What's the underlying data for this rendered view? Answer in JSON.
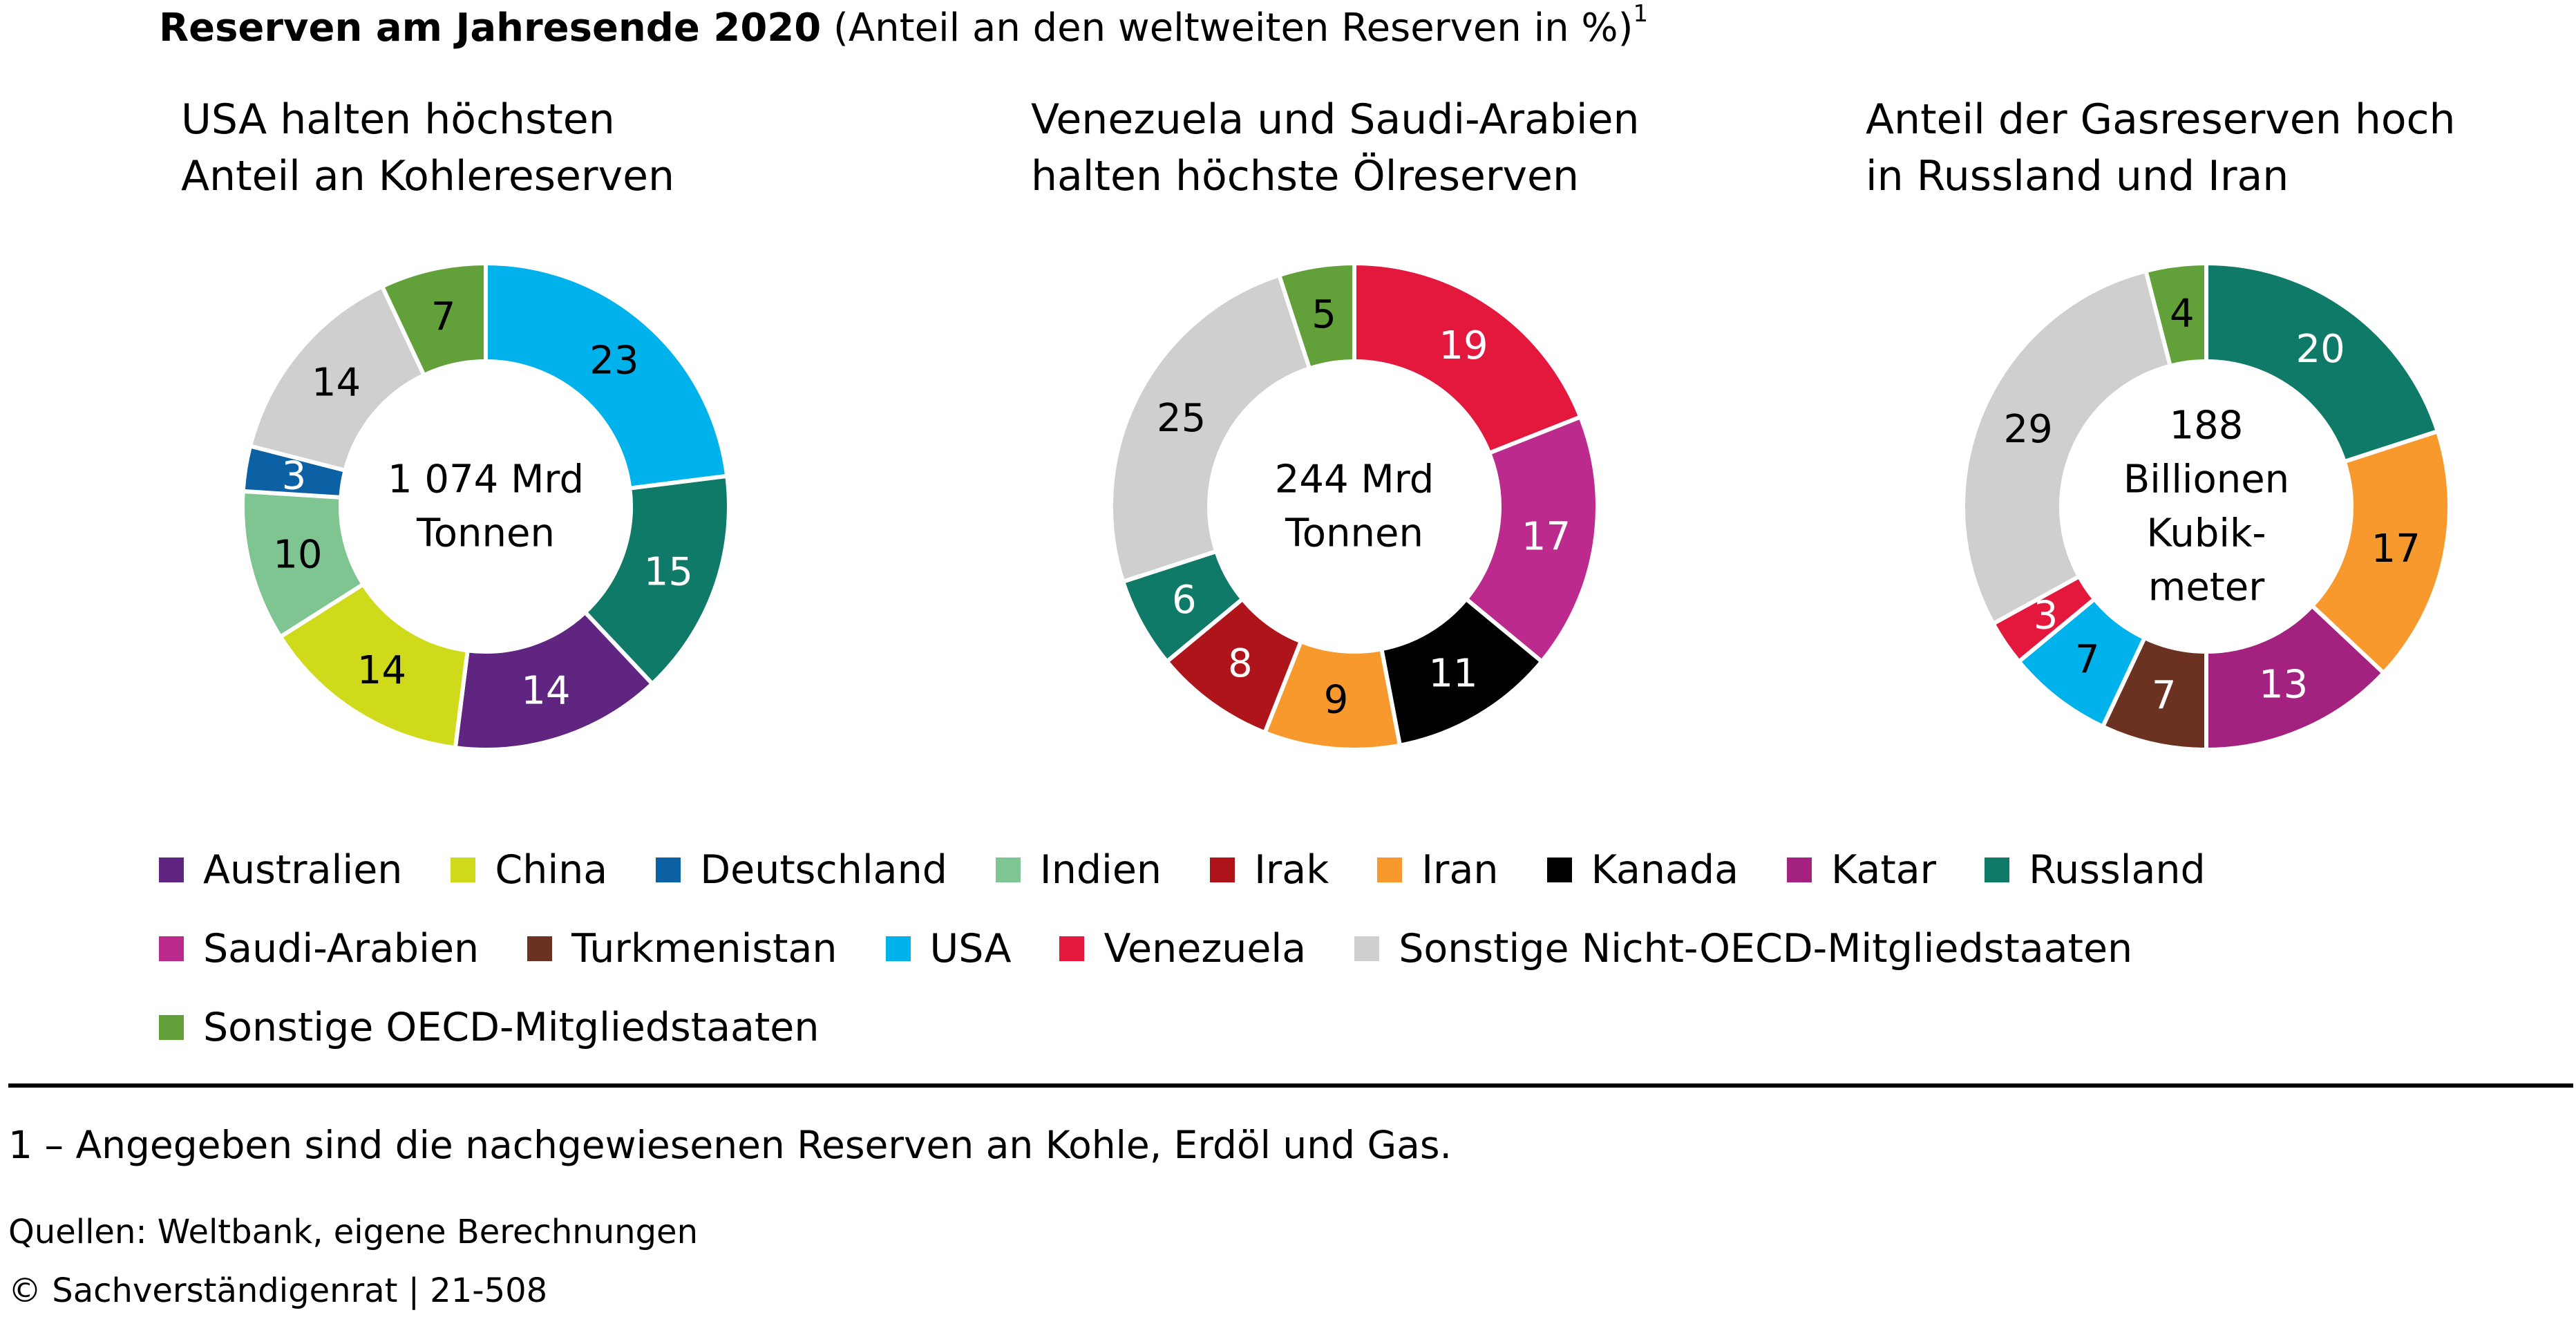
{
  "title": {
    "bold": "Reserven am Jahresende 2020",
    "rest": " (Anteil an den weltweiten Reserven in %)",
    "sup": "1"
  },
  "colors": {
    "Australien": "#5f2580",
    "China": "#cfdb1a",
    "Deutschland": "#0b61a4",
    "Indien": "#7fc591",
    "Irak": "#b0141b",
    "Iran": "#f8992e",
    "Kanada": "#000000",
    "Katar": "#a3227f",
    "Russland": "#0f7a68",
    "Saudi-Arabien": "#bd2a8d",
    "Turkmenistan": "#6b3221",
    "USA": "#00b2ec",
    "Venezuela": "#e4173d",
    "Sonstige Nicht-OECD-Mitgliedstaaten": "#cfcfcf",
    "Sonstige OECD-Mitgliedstaaten": "#62a03a"
  },
  "legend": {
    "rows": [
      [
        "Australien",
        "China",
        "Deutschland",
        "Indien",
        "Irak",
        "Iran",
        "Kanada",
        "Katar",
        "Russland"
      ],
      [
        "Saudi-Arabien",
        "Turkmenistan",
        "USA",
        "Venezuela",
        "Sonstige Nicht-OECD-Mitgliedstaaten"
      ],
      [
        "Sonstige OECD-Mitgliedstaaten"
      ]
    ]
  },
  "chart_data": [
    {
      "type": "pie",
      "title": [
        "USA halten höchsten",
        "Anteil an Kohlereserven"
      ],
      "center_label": [
        "1 074 Mrd",
        "Tonnen"
      ],
      "slices": [
        {
          "name": "USA",
          "value": 23,
          "label_color": "#000000"
        },
        {
          "name": "Russland",
          "value": 15,
          "label_color": "#ffffff"
        },
        {
          "name": "Australien",
          "value": 14,
          "label_color": "#ffffff"
        },
        {
          "name": "China",
          "value": 14,
          "label_color": "#000000"
        },
        {
          "name": "Indien",
          "value": 10,
          "label_color": "#000000"
        },
        {
          "name": "Deutschland",
          "value": 3,
          "label_color": "#ffffff"
        },
        {
          "name": "Sonstige Nicht-OECD-Mitgliedstaaten",
          "value": 14,
          "label_color": "#000000"
        },
        {
          "name": "Sonstige OECD-Mitgliedstaaten",
          "value": 7,
          "label_color": "#000000"
        }
      ]
    },
    {
      "type": "pie",
      "title": [
        "Venezuela und Saudi-Arabien",
        "halten höchste Ölreserven"
      ],
      "center_label": [
        "244 Mrd",
        "Tonnen"
      ],
      "slices": [
        {
          "name": "Venezuela",
          "value": 19,
          "label_color": "#ffffff"
        },
        {
          "name": "Saudi-Arabien",
          "value": 17,
          "label_color": "#ffffff"
        },
        {
          "name": "Kanada",
          "value": 11,
          "label_color": "#ffffff"
        },
        {
          "name": "Iran",
          "value": 9,
          "label_color": "#000000"
        },
        {
          "name": "Irak",
          "value": 8,
          "label_color": "#ffffff"
        },
        {
          "name": "Russland",
          "value": 6,
          "label_color": "#ffffff"
        },
        {
          "name": "Sonstige Nicht-OECD-Mitgliedstaaten",
          "value": 25,
          "label_color": "#000000"
        },
        {
          "name": "Sonstige OECD-Mitgliedstaaten",
          "value": 5,
          "label_color": "#000000"
        }
      ]
    },
    {
      "type": "pie",
      "title": [
        "Anteil der Gasreserven hoch",
        "in Russland und Iran"
      ],
      "center_label": [
        "188",
        "Billionen",
        "Kubik-",
        "meter"
      ],
      "slices": [
        {
          "name": "Russland",
          "value": 20,
          "label_color": "#ffffff"
        },
        {
          "name": "Iran",
          "value": 17,
          "label_color": "#000000"
        },
        {
          "name": "Katar",
          "value": 13,
          "label_color": "#ffffff"
        },
        {
          "name": "Turkmenistan",
          "value": 7,
          "label_color": "#ffffff"
        },
        {
          "name": "USA",
          "value": 7,
          "label_color": "#000000"
        },
        {
          "name": "Venezuela",
          "value": 3,
          "label_color": "#ffffff"
        },
        {
          "name": "Sonstige Nicht-OECD-Mitgliedstaaten",
          "value": 29,
          "label_color": "#000000"
        },
        {
          "name": "Sonstige OECD-Mitgliedstaaten",
          "value": 4,
          "label_color": "#000000"
        }
      ]
    }
  ],
  "footnote": "1 – Angegeben sind die nachgewiesenen Reserven an Kohle, Erdöl und Gas.",
  "source": "Quellen: Weltbank, eigene Berechnungen",
  "copyright": "© Sachverständigenrat | 21-508"
}
